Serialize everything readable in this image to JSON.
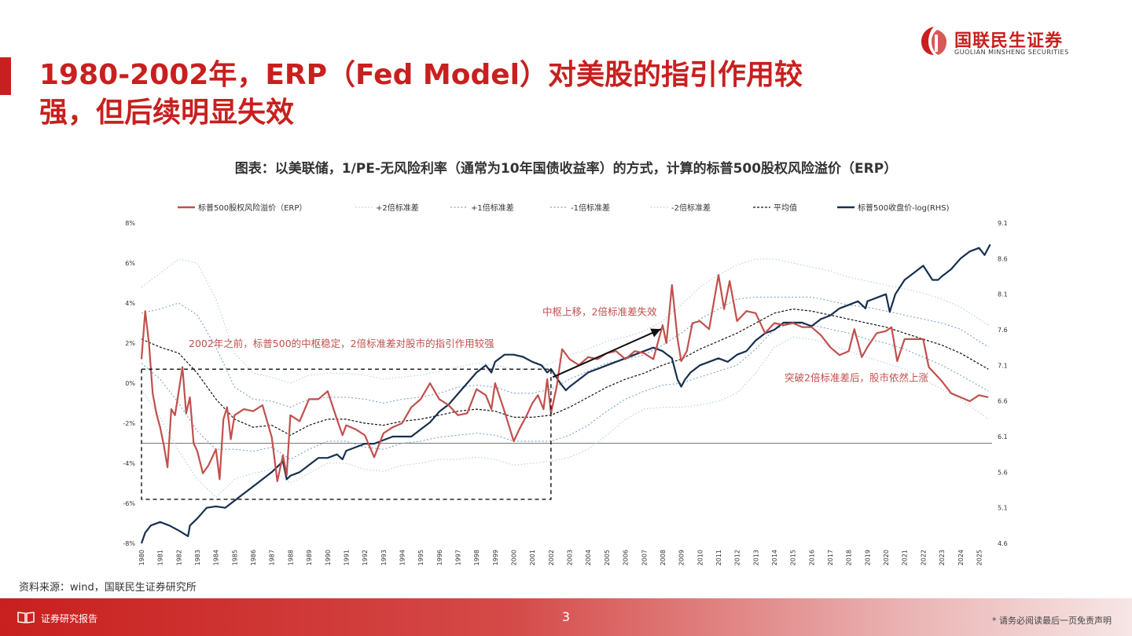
{
  "header": {
    "title_line1": "1980-2002年，ERP（Fed Model）对美股的指引作用较",
    "title_line2": "强，但后续明显失效",
    "logo_cn": "国联民生证券",
    "logo_en": "GUOLIAN MINSHENG SECURITIES"
  },
  "caption": "图表：以美联储，1/PE-无风险利率（通常为10年国债收益率）的方式，计算的标普500股权风险溢价（ERP）",
  "source": "资料来源：wind，国联民生证券研究所",
  "footer": {
    "label": "证券研究报告",
    "page": "3",
    "disclaimer": "* 请务必阅读最后一页免责声明"
  },
  "colors": {
    "brand_red": "#c8201f",
    "erp": "#c0504d",
    "spx": "#17304f",
    "band": "#a9c3dc"
  },
  "chart_data": {
    "type": "line",
    "legend": [
      "标普500股权风险溢价（ERP）",
      "+2倍标准差",
      "+1倍标准差",
      "-1倍标准差",
      "-2倍标准差",
      "平均值",
      "标普500收盘价-log(RHS)"
    ],
    "y_left_ticks": [
      "8%",
      "6%",
      "4%",
      "2%",
      "0%",
      "-2%",
      "-4%",
      "-6%",
      "-8%"
    ],
    "y_right_ticks": [
      "9.1",
      "8.6",
      "8.1",
      "7.6",
      "7.1",
      "6.6",
      "6.1",
      "5.6",
      "5.1",
      "4.6"
    ],
    "ylim_left": [
      -8,
      8
    ],
    "ylim_right": [
      4.6,
      9.1
    ],
    "x_range": [
      1980,
      2025.7
    ],
    "x_ticks": [
      "1980",
      "1981",
      "1982",
      "1983",
      "1984",
      "1985",
      "1986",
      "1987",
      "1988",
      "1989",
      "1990",
      "1991",
      "1992",
      "1993",
      "1994",
      "1995",
      "1996",
      "1997",
      "1998",
      "1999",
      "2000",
      "2001",
      "2002",
      "2003",
      "2004",
      "2005",
      "2006",
      "2007",
      "2008",
      "2009",
      "2010",
      "2011",
      "2012",
      "2013",
      "2014",
      "2015",
      "2016",
      "2017",
      "2018",
      "2019",
      "2020",
      "2021",
      "2022",
      "2023",
      "2024",
      "2025"
    ],
    "erp": {
      "x": [
        1980,
        1980.2,
        1980.4,
        1980.6,
        1980.8,
        1981,
        1981.2,
        1981.4,
        1981.6,
        1981.8,
        1982,
        1982.2,
        1982.4,
        1982.6,
        1982.8,
        1983,
        1983.3,
        1983.6,
        1984,
        1984.2,
        1984.4,
        1984.6,
        1984.8,
        1985,
        1985.5,
        1986,
        1986.5,
        1987,
        1987.3,
        1987.6,
        1987.8,
        1988,
        1988.5,
        1989,
        1989.5,
        1990,
        1990.5,
        1990.8,
        1991,
        1991.5,
        1992,
        1992.5,
        1993,
        1993.5,
        1994,
        1994.5,
        1995,
        1995.5,
        1996,
        1996.5,
        1997,
        1997.5,
        1998,
        1998.5,
        1998.8,
        1999,
        1999.5,
        2000,
        2000.3,
        2000.7,
        2001,
        2001.3,
        2001.6,
        2001.8,
        2002,
        2002.3,
        2002.6,
        2003,
        2003.5,
        2004,
        2004.5,
        2005,
        2005.5,
        2006,
        2006.5,
        2007,
        2007.5,
        2008,
        2008.2,
        2008.5,
        2008.8,
        2009,
        2009.3,
        2009.6,
        2010,
        2010.5,
        2011,
        2011.3,
        2011.6,
        2012,
        2012.5,
        2013,
        2013.5,
        2014,
        2014.5,
        2015,
        2015.5,
        2016,
        2016.5,
        2017,
        2017.5,
        2018,
        2018.3,
        2018.7,
        2019,
        2019.5,
        2020,
        2020.3,
        2020.6,
        2021,
        2021.5,
        2022,
        2022.3,
        2022.7,
        2023,
        2023.5,
        2024,
        2024.5,
        2025,
        2025.5
      ],
      "y": [
        1.2,
        3.6,
        2.0,
        -0.5,
        -1.5,
        -2.2,
        -3.1,
        -4.2,
        -1.3,
        -1.6,
        -0.4,
        0.8,
        -1.5,
        -0.7,
        -3.0,
        -3.4,
        -4.5,
        -4.1,
        -3.3,
        -4.8,
        -1.8,
        -1.2,
        -2.8,
        -1.6,
        -1.3,
        -1.4,
        -1.1,
        -2.7,
        -4.9,
        -3.6,
        -4.6,
        -1.6,
        -1.9,
        -0.8,
        -0.8,
        -0.4,
        -1.8,
        -2.6,
        -2.1,
        -2.3,
        -2.6,
        -3.7,
        -2.5,
        -2.2,
        -2.0,
        -1.2,
        -0.8,
        0.0,
        -0.8,
        -1.1,
        -1.6,
        -1.5,
        -0.3,
        -0.6,
        -1.3,
        0.0,
        -1.4,
        -2.9,
        -2.3,
        -1.6,
        -1.0,
        -0.6,
        -1.3,
        0.2,
        -1.5,
        -0.2,
        1.7,
        1.2,
        0.9,
        1.3,
        1.2,
        1.5,
        1.6,
        1.2,
        1.6,
        1.5,
        1.2,
        2.9,
        2.0,
        4.9,
        2.2,
        1.1,
        1.6,
        3.0,
        3.1,
        2.7,
        5.4,
        3.7,
        5.1,
        3.1,
        3.6,
        3.5,
        2.5,
        3.0,
        2.9,
        3.0,
        2.8,
        2.8,
        2.4,
        1.8,
        1.4,
        1.6,
        2.7,
        1.3,
        1.8,
        2.5,
        2.6,
        2.8,
        1.1,
        2.2,
        2.2,
        2.2,
        0.8,
        0.4,
        0.1,
        -0.5,
        -0.7,
        -0.9,
        -0.6,
        -0.7
      ]
    },
    "mean": {
      "x": [
        1980,
        1981,
        1982,
        1983,
        1984,
        1985,
        1986,
        1987,
        1988,
        1989,
        1990,
        1991,
        1992,
        1993,
        1994,
        1995,
        1996,
        1997,
        1998,
        1999,
        2000,
        2001,
        2002,
        2003,
        2004,
        2005,
        2006,
        2007,
        2008,
        2009,
        2010,
        2011,
        2012,
        2013,
        2014,
        2015,
        2016,
        2017,
        2018,
        2019,
        2020,
        2021,
        2022,
        2023,
        2024,
        2025.5
      ],
      "y": [
        2.2,
        1.8,
        1.5,
        0.5,
        -0.8,
        -1.8,
        -2.2,
        -2.1,
        -2.6,
        -2.1,
        -1.8,
        -1.8,
        -2.0,
        -2.1,
        -1.9,
        -1.8,
        -1.6,
        -1.4,
        -1.3,
        -1.4,
        -1.7,
        -1.7,
        -1.6,
        -1.2,
        -0.7,
        -0.2,
        0.2,
        0.5,
        0.9,
        1.2,
        1.7,
        2.1,
        2.5,
        3.0,
        3.5,
        3.7,
        3.6,
        3.4,
        3.2,
        3.0,
        2.8,
        2.5,
        2.2,
        1.9,
        1.5,
        0.7
      ]
    },
    "plus1sd": {
      "x": [
        1980,
        1981,
        1982,
        1983,
        1984,
        1985,
        1986,
        1987,
        1988,
        1989,
        1990,
        1991,
        1992,
        1993,
        1994,
        1995,
        1996,
        1997,
        1998,
        1999,
        2000,
        2001,
        2002,
        2003,
        2004,
        2005,
        2006,
        2007,
        2008,
        2009,
        2010,
        2011,
        2012,
        2013,
        2014,
        2015,
        2016,
        2017,
        2018,
        2019,
        2020,
        2021,
        2022,
        2023,
        2024,
        2025.5
      ],
      "y": [
        3.5,
        3.7,
        4.0,
        3.4,
        1.8,
        -0.2,
        -0.8,
        -0.9,
        -1.2,
        -0.8,
        -0.7,
        -0.7,
        -0.8,
        -1.0,
        -0.8,
        -0.7,
        -0.5,
        -0.2,
        -0.1,
        -0.2,
        -0.5,
        -0.5,
        -0.3,
        0.2,
        0.6,
        1.0,
        1.2,
        1.4,
        1.9,
        2.5,
        3.2,
        3.7,
        4.2,
        4.3,
        4.3,
        4.3,
        4.3,
        4.1,
        3.9,
        3.8,
        3.6,
        3.4,
        3.2,
        3.0,
        2.7,
        1.8
      ]
    },
    "minus1sd": {
      "x": [
        1980,
        1981,
        1982,
        1983,
        1984,
        1985,
        1986,
        1987,
        1988,
        1989,
        1990,
        1991,
        1992,
        1993,
        1994,
        1995,
        1996,
        1997,
        1998,
        1999,
        2000,
        2001,
        2002,
        2003,
        2004,
        2005,
        2006,
        2007,
        2008,
        2009,
        2010,
        2011,
        2012,
        2013,
        2014,
        2015,
        2016,
        2017,
        2018,
        2019,
        2020,
        2021,
        2022,
        2023,
        2024,
        2025.5
      ],
      "y": [
        1.0,
        0.2,
        -1.0,
        -2.4,
        -3.3,
        -3.3,
        -3.4,
        -3.2,
        -3.8,
        -3.3,
        -2.9,
        -2.9,
        -3.2,
        -3.3,
        -3.0,
        -2.9,
        -2.7,
        -2.6,
        -2.5,
        -2.6,
        -2.9,
        -2.9,
        -2.9,
        -2.6,
        -2.1,
        -1.4,
        -0.8,
        -0.4,
        -0.1,
        0.0,
        0.3,
        0.6,
        0.9,
        1.7,
        2.7,
        3.0,
        2.9,
        2.7,
        2.5,
        2.2,
        2.0,
        1.7,
        1.3,
        0.9,
        0.4,
        -0.4
      ]
    },
    "plus2sd": {
      "x": [
        1980,
        1981,
        1982,
        1983,
        1984,
        1985,
        1986,
        1987,
        1988,
        1989,
        1990,
        1991,
        1992,
        1993,
        1994,
        1995,
        1996,
        1997,
        1998,
        1999,
        2000,
        2001,
        2002,
        2003,
        2004,
        2005,
        2006,
        2007,
        2008,
        2009,
        2010,
        2011,
        2012,
        2013,
        2014,
        2015,
        2016,
        2017,
        2018,
        2019,
        2020,
        2021,
        2022,
        2023,
        2024,
        2025.5
      ],
      "y": [
        4.8,
        5.5,
        6.2,
        6.0,
        4.2,
        1.5,
        0.5,
        0.3,
        0.0,
        0.4,
        0.5,
        0.5,
        0.4,
        0.2,
        0.3,
        0.4,
        0.6,
        0.8,
        1.0,
        0.9,
        0.7,
        0.7,
        1.0,
        1.4,
        1.7,
        2.1,
        2.3,
        2.6,
        3.1,
        3.9,
        4.8,
        5.4,
        5.9,
        6.2,
        6.2,
        6.0,
        5.8,
        5.6,
        5.3,
        5.1,
        4.9,
        4.7,
        4.5,
        4.2,
        3.8,
        2.9
      ]
    },
    "minus2sd": {
      "x": [
        1980,
        1981,
        1982,
        1983,
        1984,
        1985,
        1986,
        1987,
        1988,
        1989,
        1990,
        1991,
        1992,
        1993,
        1994,
        1995,
        1996,
        1997,
        1998,
        1999,
        2000,
        2001,
        2002,
        2003,
        2004,
        2005,
        2006,
        2007,
        2008,
        2009,
        2010,
        2011,
        2012,
        2013,
        2014,
        2015,
        2016,
        2017,
        2018,
        2019,
        2020,
        2021,
        2022,
        2023,
        2024,
        2025.5
      ],
      "y": [
        -0.3,
        -1.7,
        -3.4,
        -4.8,
        -5.7,
        -4.8,
        -4.5,
        -4.3,
        -5.0,
        -4.5,
        -4.0,
        -4.0,
        -4.3,
        -4.4,
        -4.1,
        -4.0,
        -3.8,
        -3.8,
        -3.7,
        -3.8,
        -4.1,
        -4.0,
        -3.9,
        -3.7,
        -3.3,
        -2.6,
        -1.8,
        -1.3,
        -1.2,
        -1.2,
        -1.1,
        -0.9,
        -0.5,
        0.5,
        1.8,
        2.3,
        2.2,
        1.9,
        1.6,
        1.3,
        1.0,
        0.7,
        0.2,
        -0.3,
        -0.8,
        -1.8
      ]
    },
    "spx_log": {
      "x": [
        1980,
        1980.2,
        1980.5,
        1981,
        1981.5,
        1982,
        1982.5,
        1982.6,
        1983,
        1983.5,
        1984,
        1984.5,
        1985,
        1985.5,
        1986,
        1986.5,
        1987,
        1987.6,
        1987.8,
        1988,
        1988.5,
        1989,
        1989.5,
        1990,
        1990.5,
        1990.8,
        1991,
        1991.5,
        1992,
        1992.5,
        1993,
        1993.5,
        1994,
        1994.5,
        1995,
        1995.5,
        1996,
        1996.5,
        1997,
        1997.5,
        1998,
        1998.5,
        1998.8,
        1999,
        1999.5,
        2000,
        2000.5,
        2001,
        2001.5,
        2001.8,
        2002,
        2002.5,
        2002.8,
        2003,
        2003.5,
        2004,
        2004.5,
        2005,
        2005.5,
        2006,
        2006.5,
        2007,
        2007.5,
        2008,
        2008.5,
        2008.8,
        2009,
        2009.2,
        2009.5,
        2010,
        2010.5,
        2011,
        2011.5,
        2012,
        2012.5,
        2013,
        2013.5,
        2014,
        2014.5,
        2015,
        2015.5,
        2016,
        2016.5,
        2017,
        2017.5,
        2018,
        2018.5,
        2018.9,
        2019,
        2019.5,
        2020,
        2020.2,
        2020.5,
        2021,
        2021.5,
        2022,
        2022.5,
        2022.8,
        2023,
        2023.5,
        2024,
        2024.5,
        2025,
        2025.3,
        2025.6
      ],
      "y": [
        4.6,
        4.75,
        4.85,
        4.9,
        4.85,
        4.78,
        4.7,
        4.85,
        4.95,
        5.1,
        5.12,
        5.1,
        5.2,
        5.3,
        5.4,
        5.5,
        5.6,
        5.75,
        5.5,
        5.55,
        5.6,
        5.7,
        5.8,
        5.8,
        5.85,
        5.78,
        5.9,
        5.95,
        6.0,
        6.0,
        6.05,
        6.1,
        6.1,
        6.1,
        6.2,
        6.3,
        6.45,
        6.55,
        6.7,
        6.85,
        7.0,
        7.1,
        7.0,
        7.15,
        7.25,
        7.25,
        7.22,
        7.15,
        7.1,
        7.0,
        7.05,
        6.85,
        6.75,
        6.8,
        6.9,
        7.0,
        7.05,
        7.1,
        7.15,
        7.2,
        7.25,
        7.3,
        7.35,
        7.3,
        7.2,
        6.9,
        6.8,
        6.9,
        7.0,
        7.1,
        7.15,
        7.2,
        7.15,
        7.25,
        7.3,
        7.45,
        7.55,
        7.6,
        7.7,
        7.7,
        7.7,
        7.65,
        7.75,
        7.8,
        7.9,
        7.95,
        8.0,
        7.9,
        8.0,
        8.05,
        8.1,
        7.85,
        8.1,
        8.3,
        8.4,
        8.5,
        8.3,
        8.3,
        8.35,
        8.45,
        8.6,
        8.7,
        8.75,
        8.65,
        8.8
      ]
    },
    "annotations": {
      "pre2002": "2002年之前，标普500的中枢稳定，2倍标准差对股市的指引作用较强",
      "shift": "中枢上移，2倍标准差失效",
      "breakout": "突破2倍标准差后，股市依然上涨"
    }
  }
}
